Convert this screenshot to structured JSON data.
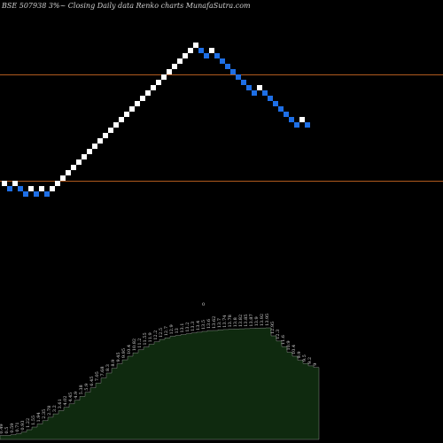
{
  "chart_data": {
    "type": "renko",
    "title": "BSE 507938  3%~  Closing Daily data  Renko  charts MunafaSutra.com",
    "colors": {
      "background": "#000000",
      "up_brick": "#ffffff",
      "down_brick": "#1e6fe6",
      "reference_line": "#b05a1e",
      "volume_fill": "#0f2a0f",
      "volume_edge": "#d8d8d8"
    },
    "reference_lines": [
      84.5,
      204.5
    ],
    "bricks": [
      {
        "d": "up",
        "y": 207
      },
      {
        "d": "down",
        "y": 213
      },
      {
        "d": "up",
        "y": 207
      },
      {
        "d": "down",
        "y": 213
      },
      {
        "d": "down",
        "y": 219
      },
      {
        "d": "up",
        "y": 213
      },
      {
        "d": "down",
        "y": 219
      },
      {
        "d": "up",
        "y": 213
      },
      {
        "d": "down",
        "y": 219
      },
      {
        "d": "up",
        "y": 213
      },
      {
        "d": "up",
        "y": 207
      },
      {
        "d": "up",
        "y": 201
      },
      {
        "d": "up",
        "y": 195
      },
      {
        "d": "up",
        "y": 189
      },
      {
        "d": "up",
        "y": 183
      },
      {
        "d": "up",
        "y": 177
      },
      {
        "d": "up",
        "y": 171
      },
      {
        "d": "up",
        "y": 165
      },
      {
        "d": "up",
        "y": 159
      },
      {
        "d": "up",
        "y": 153
      },
      {
        "d": "up",
        "y": 147
      },
      {
        "d": "up",
        "y": 141
      },
      {
        "d": "up",
        "y": 135
      },
      {
        "d": "up",
        "y": 129
      },
      {
        "d": "up",
        "y": 123
      },
      {
        "d": "up",
        "y": 117
      },
      {
        "d": "up",
        "y": 111
      },
      {
        "d": "up",
        "y": 105
      },
      {
        "d": "up",
        "y": 99
      },
      {
        "d": "up",
        "y": 93
      },
      {
        "d": "up",
        "y": 87
      },
      {
        "d": "up",
        "y": 81
      },
      {
        "d": "up",
        "y": 75
      },
      {
        "d": "up",
        "y": 69
      },
      {
        "d": "up",
        "y": 63
      },
      {
        "d": "up",
        "y": 57
      },
      {
        "d": "up",
        "y": 51
      },
      {
        "d": "down",
        "y": 57
      },
      {
        "d": "down",
        "y": 63
      },
      {
        "d": "up",
        "y": 57
      },
      {
        "d": "down",
        "y": 63
      },
      {
        "d": "down",
        "y": 69
      },
      {
        "d": "down",
        "y": 75
      },
      {
        "d": "down",
        "y": 81
      },
      {
        "d": "down",
        "y": 87
      },
      {
        "d": "down",
        "y": 93
      },
      {
        "d": "down",
        "y": 99
      },
      {
        "d": "down",
        "y": 105
      },
      {
        "d": "up",
        "y": 99
      },
      {
        "d": "down",
        "y": 105
      },
      {
        "d": "down",
        "y": 111
      },
      {
        "d": "down",
        "y": 117
      },
      {
        "d": "down",
        "y": 123
      },
      {
        "d": "down",
        "y": 129
      },
      {
        "d": "down",
        "y": 135
      },
      {
        "d": "down",
        "y": 141
      },
      {
        "d": "up",
        "y": 135
      },
      {
        "d": "down",
        "y": 141
      }
    ],
    "volume": {
      "values": [
        0.49,
        0.5,
        0.59,
        0.71,
        0.93,
        1.22,
        1.55,
        1.94,
        2.35,
        2.78,
        3.2,
        3.61,
        4.02,
        4.45,
        4.9,
        5.38,
        5.9,
        6.45,
        7.05,
        7.68,
        8.3,
        8.9,
        9.45,
        9.95,
        10.4,
        10.82,
        11.2,
        11.55,
        11.9,
        12.2,
        12.5,
        12.7,
        12.9,
        13.0,
        13.1,
        13.2,
        13.3,
        13.4,
        13.5,
        13.6,
        13.62,
        13.7,
        13.74,
        13.78,
        13.8,
        13.82,
        13.85,
        13.87,
        13.9,
        13.92,
        13.95,
        12.95,
        12.3,
        11.6,
        10.9,
        10.4,
        9.9,
        9.5,
        9.2,
        9.0
      ],
      "labels": [
        "0.49",
        "0.5",
        "0.59",
        "0.71",
        "0.93",
        "1.22",
        "1.55",
        "1.94",
        "2.35",
        "2.78",
        "3.2",
        "3.61",
        "4.02",
        "4.45",
        "4.9",
        "5.38",
        "5.9",
        "6.45",
        "7.05",
        "7.68",
        "8.3",
        "8.9",
        "9.45",
        "9.95",
        "10.4",
        "10.82",
        "11.2",
        "11.55",
        "11.9",
        "12.2",
        "12.5",
        "12.7",
        "12.9",
        "13",
        "13.1",
        "13.2",
        "13.3",
        "13.4",
        "13.5",
        "13.6",
        "13.62",
        "13.7",
        "13.74",
        "13.78",
        "13.8",
        "13.82",
        "13.85",
        "13.87",
        "13.9",
        "13.92",
        "13.95",
        "12.95",
        "12.3",
        "11.6",
        "10.9",
        "10.4",
        "9.9",
        "9.5",
        "9.2",
        "9"
      ],
      "ymax": 14.5,
      "marker_label": "0"
    }
  }
}
